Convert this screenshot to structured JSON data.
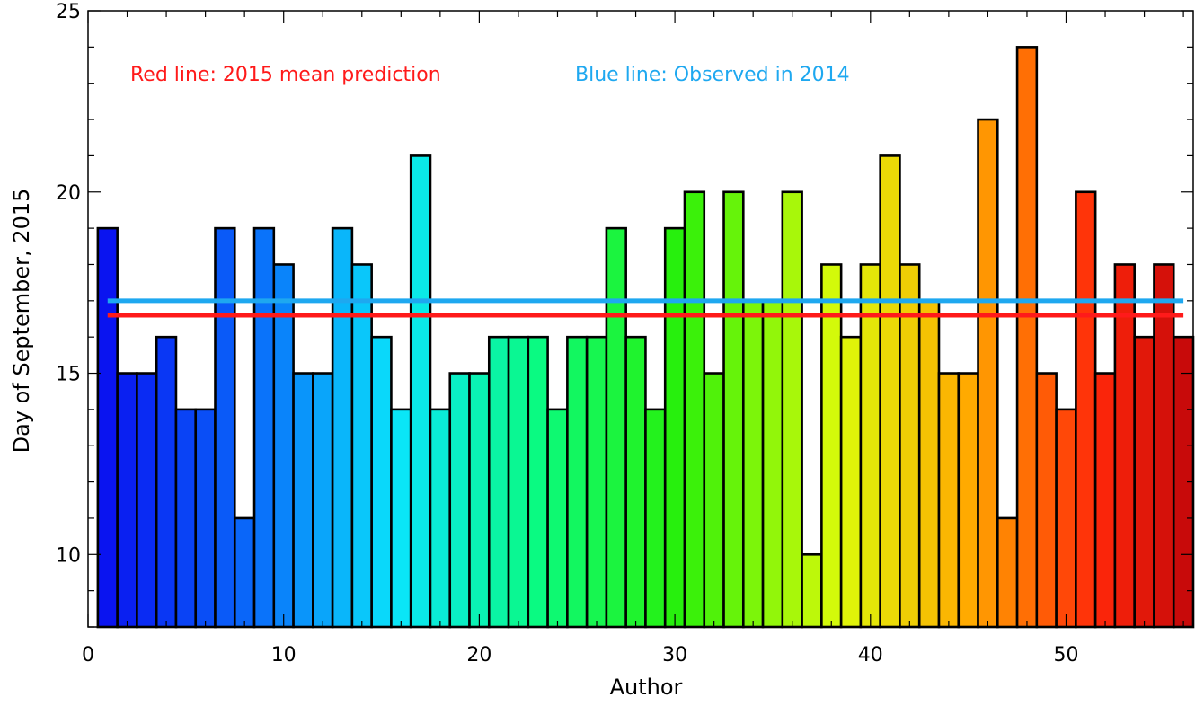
{
  "chart_data": {
    "type": "bar",
    "xlabel": "Author",
    "ylabel": "Day of September, 2015",
    "xlim": [
      0,
      56.5
    ],
    "ylim": [
      8,
      25
    ],
    "xticks": [
      0,
      10,
      20,
      30,
      40,
      50
    ],
    "yticks": [
      10,
      15,
      20,
      25
    ],
    "x": [
      1,
      2,
      3,
      4,
      5,
      6,
      7,
      8,
      9,
      10,
      11,
      12,
      13,
      14,
      15,
      16,
      17,
      18,
      19,
      20,
      21,
      22,
      23,
      24,
      25,
      26,
      27,
      28,
      29,
      30,
      31,
      32,
      33,
      34,
      35,
      36,
      37,
      38,
      39,
      40,
      41,
      42,
      43,
      44,
      45,
      46,
      47,
      48,
      49,
      50,
      51,
      52,
      53,
      54,
      55,
      56
    ],
    "values": [
      19,
      15,
      15,
      16,
      14,
      14,
      19,
      11,
      19,
      18,
      15,
      15,
      19,
      18,
      16,
      14,
      21,
      14,
      15,
      15,
      16,
      16,
      16,
      14,
      16,
      16,
      19,
      16,
      14,
      19,
      20,
      15,
      20,
      17,
      17,
      20,
      10,
      18,
      16,
      18,
      21,
      18,
      17,
      15,
      15,
      22,
      11,
      24,
      15,
      14,
      20,
      15,
      18,
      16,
      18,
      16
    ],
    "color_map": "rainbow (blue to dark red)",
    "lines": [
      {
        "name": "2015 mean prediction",
        "y": 16.6,
        "x_range": [
          1,
          56
        ],
        "color": "#ff1a1a"
      },
      {
        "name": "Observed in 2014",
        "y": 17.0,
        "x_range": [
          1,
          56
        ],
        "color": "#1ea8f0"
      }
    ],
    "annotations": [
      {
        "text": "Red line: 2015 mean prediction",
        "color": "#ff1a1a"
      },
      {
        "text": "Blue line: Observed in 2014",
        "color": "#1ea8f0"
      }
    ],
    "grid": false
  }
}
